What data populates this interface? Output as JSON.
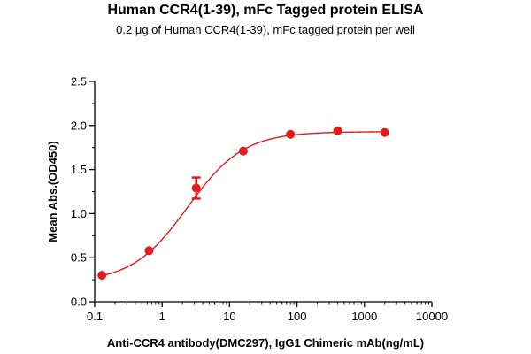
{
  "title": "Human CCR4(1-39), mFc Tagged protein ELISA",
  "subtitle": "0.2 μg of Human CCR4(1-39), mFc tagged protein per well",
  "chart_data": {
    "type": "scatter",
    "title": "Human CCR4(1-39), mFc Tagged protein ELISA",
    "subtitle": "0.2 μg of Human CCR4(1-39), mFc tagged protein per well",
    "xlabel": "Anti-CCR4 antibody(DMC297), IgG1 Chimeric mAb(ng/mL)",
    "ylabel": "Mean Abs.(OD450)",
    "xscale": "log",
    "xlim": [
      0.1,
      10000
    ],
    "ylim": [
      0,
      2.5
    ],
    "x_ticks": [
      0.1,
      1,
      10,
      100,
      1000,
      10000
    ],
    "x_tick_labels": [
      "0.1",
      "1",
      "10",
      "100",
      "1000",
      "10000"
    ],
    "y_ticks": [
      0,
      0.5,
      1.0,
      1.5,
      2.0,
      2.5
    ],
    "y_tick_labels": [
      "0.0",
      "0.5",
      "1.0",
      "1.5",
      "2.0",
      "2.5"
    ],
    "grid": false,
    "color": "#e01b1b",
    "points": [
      {
        "x": 0.128,
        "y": 0.3
      },
      {
        "x": 0.64,
        "y": 0.58
      },
      {
        "x": 3.2,
        "y": 1.29,
        "err": 0.12
      },
      {
        "x": 16,
        "y": 1.71
      },
      {
        "x": 80,
        "y": 1.9
      },
      {
        "x": 400,
        "y": 1.94
      },
      {
        "x": 2000,
        "y": 1.92
      }
    ],
    "fit": {
      "bottom": 0.22,
      "top": 1.93,
      "ec50": 2.4,
      "hill": 1.05
    }
  }
}
